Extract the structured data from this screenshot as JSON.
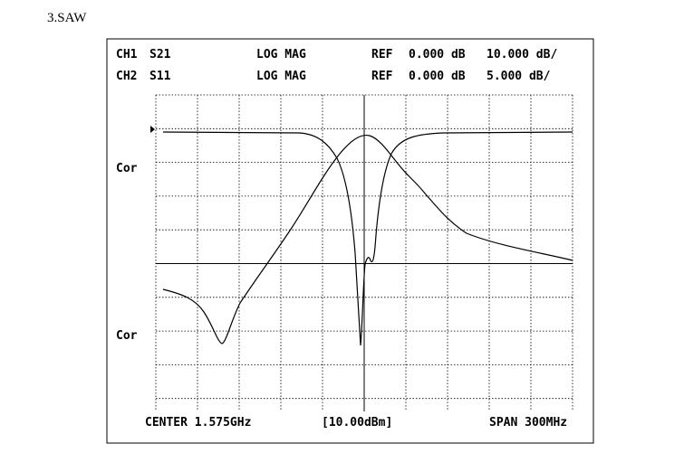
{
  "heading": "3.SAW",
  "header": {
    "rows": [
      [
        "CH1",
        "S21",
        "LOG MAG",
        "REF",
        "0.000 dB",
        "10.000 dB/"
      ],
      [
        "CH2",
        "S11",
        "LOG MAG",
        "REF",
        "0.000 dB",
        "5.000 dB/"
      ]
    ]
  },
  "channel_labels": [
    "Cor",
    "Cor"
  ],
  "footer": {
    "center": "CENTER 1.575GHz",
    "level": "[10.00dBm]",
    "span": "SPAN 300MHz"
  }
}
